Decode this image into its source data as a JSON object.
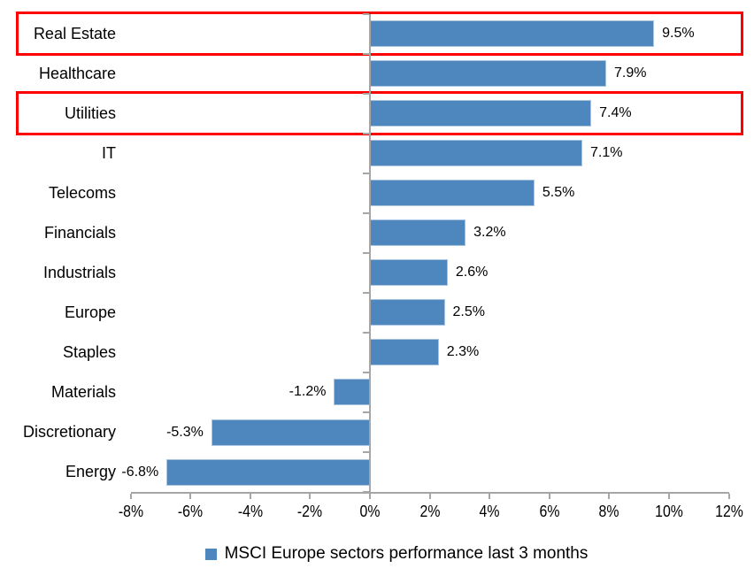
{
  "chart_data": {
    "type": "bar",
    "orientation": "horizontal",
    "legend_label": "MSCI Europe sectors performance last 3 months",
    "categories": [
      "Real Estate",
      "Healthcare",
      "Utilities",
      "IT",
      "Telecoms",
      "Financials",
      "Industrials",
      "Europe",
      "Staples",
      "Materials",
      "Discretionary",
      "Energy"
    ],
    "values": [
      9.5,
      7.9,
      7.4,
      7.1,
      5.5,
      3.2,
      2.6,
      2.5,
      2.3,
      -1.2,
      -5.3,
      -6.8
    ],
    "data_labels": [
      "9.5%",
      "7.9%",
      "7.4%",
      "7.1%",
      "5.5%",
      "3.2%",
      "2.6%",
      "2.5%",
      "2.3%",
      "-1.2%",
      "-5.3%",
      "-6.8%"
    ],
    "x_tick_labels": [
      "-8%",
      "-6%",
      "-4%",
      "-2%",
      "0%",
      "2%",
      "4%",
      "6%",
      "8%",
      "10%",
      "12%"
    ],
    "x_tick_values": [
      -8,
      -6,
      -4,
      -2,
      0,
      2,
      4,
      6,
      8,
      10,
      12
    ],
    "xlim": [
      -8,
      12
    ],
    "highlighted_categories": [
      "Real Estate",
      "Utilities"
    ],
    "bar_color": "#4e87be",
    "highlight_box_color": "#fe0000",
    "axis_color": "#a6a6a6",
    "grid": "off",
    "legend_position": "bottom-center"
  }
}
